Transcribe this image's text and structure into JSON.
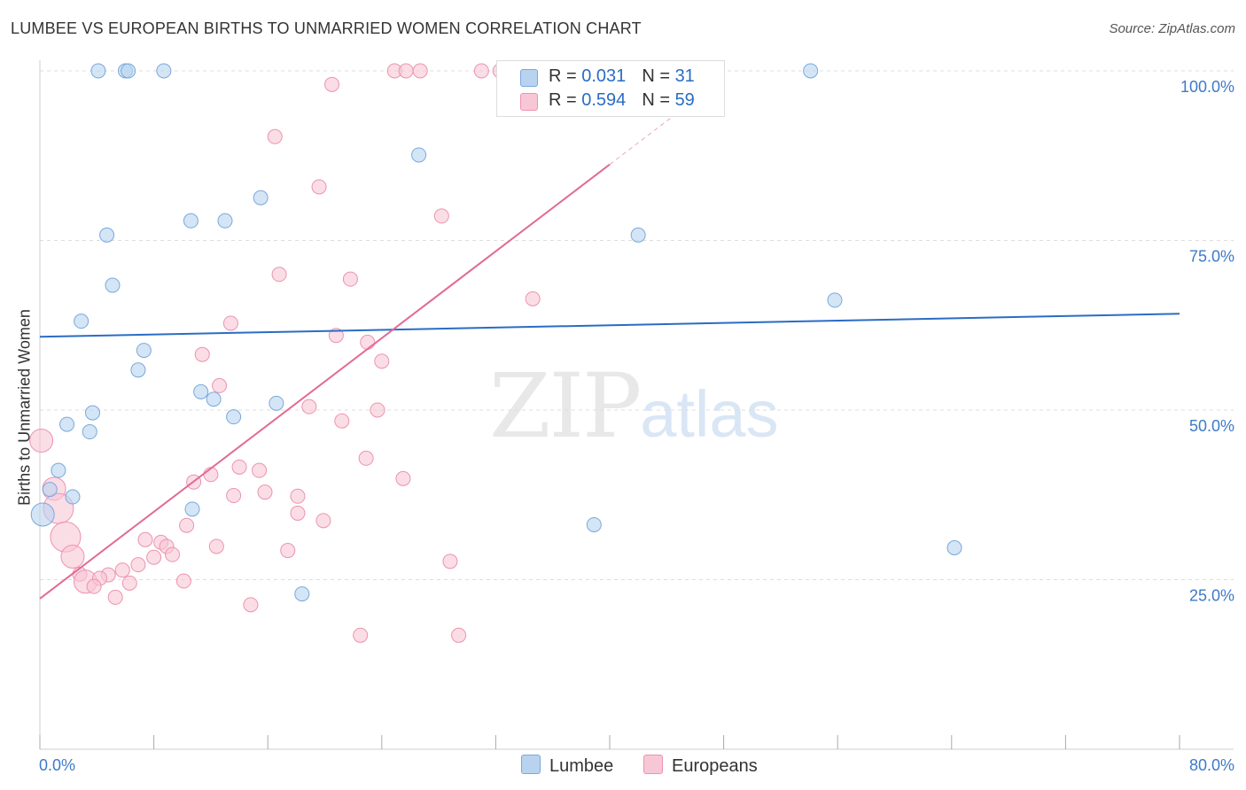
{
  "title": "LUMBEE VS EUROPEAN BIRTHS TO UNMARRIED WOMEN CORRELATION CHART",
  "source": "Source: ZipAtlas.com",
  "watermark": {
    "zip": "ZIP",
    "atlas": "atlas"
  },
  "legend": {
    "lumbee": {
      "r_label": "R = ",
      "r_value": "0.031",
      "n_label": "N = ",
      "n_value": "31"
    },
    "europeans": {
      "r_label": "R = ",
      "r_value": "0.594",
      "n_label": "N = ",
      "n_value": "59"
    }
  },
  "bottom_legend": {
    "lumbee": "Lumbee",
    "europeans": "Europeans"
  },
  "colors": {
    "lumbee_fill": "#b8d3f0",
    "lumbee_stroke": "#7aa8dc",
    "lumbee_line": "#2a6cc4",
    "europeans_fill": "#f8c7d6",
    "europeans_stroke": "#ec93b0",
    "europeans_line": "#e26a94",
    "tick_label": "#3d7ac8",
    "grid": "#dddddd"
  },
  "chart_data": {
    "type": "scatter",
    "title": "LUMBEE VS EUROPEAN BIRTHS TO UNMARRIED WOMEN CORRELATION CHART",
    "xlabel": "",
    "ylabel": "Births to Unmarried Women",
    "xlim": [
      0,
      80
    ],
    "ylim": [
      0,
      100
    ],
    "x_tick_labels": [
      "0.0%",
      "80.0%"
    ],
    "y_ticks": [
      25,
      50,
      75,
      100
    ],
    "y_tick_labels": [
      "25.0%",
      "50.0%",
      "75.0%",
      "100.0%"
    ],
    "grid": true,
    "legend_position": "top-center",
    "series": [
      {
        "name": "Lumbee",
        "r": 0.031,
        "n": 31,
        "trend": {
          "x": [
            0,
            80
          ],
          "y": [
            60.8,
            64.2
          ]
        },
        "points": [
          {
            "x": 4.1,
            "y": 100,
            "s": 1
          },
          {
            "x": 6.0,
            "y": 100,
            "s": 1
          },
          {
            "x": 6.2,
            "y": 100,
            "s": 1
          },
          {
            "x": 8.7,
            "y": 100,
            "s": 1
          },
          {
            "x": 54.1,
            "y": 100,
            "s": 1
          },
          {
            "x": 26.6,
            "y": 87.6,
            "s": 1
          },
          {
            "x": 15.5,
            "y": 81.3,
            "s": 1
          },
          {
            "x": 10.6,
            "y": 77.9,
            "s": 1
          },
          {
            "x": 13.0,
            "y": 77.9,
            "s": 1
          },
          {
            "x": 4.7,
            "y": 75.8,
            "s": 1
          },
          {
            "x": 42.0,
            "y": 75.8,
            "s": 1
          },
          {
            "x": 5.1,
            "y": 68.4,
            "s": 1
          },
          {
            "x": 55.8,
            "y": 66.2,
            "s": 1
          },
          {
            "x": 2.9,
            "y": 63.1,
            "s": 1
          },
          {
            "x": 7.3,
            "y": 58.8,
            "s": 1
          },
          {
            "x": 6.9,
            "y": 55.9,
            "s": 1
          },
          {
            "x": 11.3,
            "y": 52.7,
            "s": 1
          },
          {
            "x": 12.2,
            "y": 51.6,
            "s": 1
          },
          {
            "x": 16.6,
            "y": 51.0,
            "s": 1
          },
          {
            "x": 3.7,
            "y": 49.6,
            "s": 1
          },
          {
            "x": 13.6,
            "y": 49.0,
            "s": 1
          },
          {
            "x": 1.9,
            "y": 47.9,
            "s": 1
          },
          {
            "x": 3.5,
            "y": 46.8,
            "s": 1
          },
          {
            "x": 1.3,
            "y": 41.1,
            "s": 1
          },
          {
            "x": 0.7,
            "y": 38.3,
            "s": 1
          },
          {
            "x": 2.3,
            "y": 37.2,
            "s": 1
          },
          {
            "x": 10.7,
            "y": 35.4,
            "s": 1
          },
          {
            "x": 0.2,
            "y": 34.6,
            "s": 2
          },
          {
            "x": 38.9,
            "y": 33.1,
            "s": 1
          },
          {
            "x": 64.2,
            "y": 29.7,
            "s": 1
          },
          {
            "x": 18.4,
            "y": 22.9,
            "s": 1
          }
        ]
      },
      {
        "name": "Europeans",
        "r": 0.594,
        "n": 59,
        "trend": {
          "x": [
            0,
            40,
            48
          ],
          "y": [
            22.2,
            86.2,
            99.0
          ],
          "dashed_from_index": 1
        },
        "points": [
          {
            "x": 24.9,
            "y": 100,
            "s": 1
          },
          {
            "x": 25.7,
            "y": 100,
            "s": 1
          },
          {
            "x": 26.7,
            "y": 100,
            "s": 1
          },
          {
            "x": 31.0,
            "y": 100,
            "s": 1
          },
          {
            "x": 32.3,
            "y": 100,
            "s": 1
          },
          {
            "x": 20.5,
            "y": 98.0,
            "s": 1
          },
          {
            "x": 16.5,
            "y": 90.3,
            "s": 1
          },
          {
            "x": 19.6,
            "y": 82.9,
            "s": 1
          },
          {
            "x": 28.2,
            "y": 78.6,
            "s": 1
          },
          {
            "x": 16.8,
            "y": 70.0,
            "s": 1
          },
          {
            "x": 21.8,
            "y": 69.3,
            "s": 1
          },
          {
            "x": 34.6,
            "y": 66.4,
            "s": 1
          },
          {
            "x": 13.4,
            "y": 62.8,
            "s": 1
          },
          {
            "x": 20.8,
            "y": 61.0,
            "s": 1
          },
          {
            "x": 23.0,
            "y": 60.0,
            "s": 1
          },
          {
            "x": 11.4,
            "y": 58.2,
            "s": 1
          },
          {
            "x": 24.0,
            "y": 57.2,
            "s": 1
          },
          {
            "x": 12.6,
            "y": 53.6,
            "s": 1
          },
          {
            "x": 18.9,
            "y": 50.5,
            "s": 1
          },
          {
            "x": 23.7,
            "y": 50.0,
            "s": 1
          },
          {
            "x": 21.2,
            "y": 48.4,
            "s": 1
          },
          {
            "x": 0.1,
            "y": 45.5,
            "s": 2
          },
          {
            "x": 22.9,
            "y": 42.9,
            "s": 1
          },
          {
            "x": 14.0,
            "y": 41.6,
            "s": 1
          },
          {
            "x": 15.4,
            "y": 41.1,
            "s": 1
          },
          {
            "x": 12.0,
            "y": 40.5,
            "s": 1
          },
          {
            "x": 25.5,
            "y": 39.9,
            "s": 1
          },
          {
            "x": 10.8,
            "y": 39.4,
            "s": 1
          },
          {
            "x": 1.0,
            "y": 38.4,
            "s": 2
          },
          {
            "x": 15.8,
            "y": 37.9,
            "s": 1
          },
          {
            "x": 13.6,
            "y": 37.4,
            "s": 1
          },
          {
            "x": 18.1,
            "y": 37.3,
            "s": 1
          },
          {
            "x": 1.3,
            "y": 35.5,
            "s": 3
          },
          {
            "x": 18.1,
            "y": 34.8,
            "s": 1
          },
          {
            "x": 19.9,
            "y": 33.7,
            "s": 1
          },
          {
            "x": 10.3,
            "y": 33.0,
            "s": 1
          },
          {
            "x": 1.8,
            "y": 31.3,
            "s": 3
          },
          {
            "x": 7.4,
            "y": 30.9,
            "s": 1
          },
          {
            "x": 8.5,
            "y": 30.5,
            "s": 1
          },
          {
            "x": 8.9,
            "y": 29.9,
            "s": 1
          },
          {
            "x": 12.4,
            "y": 29.9,
            "s": 1
          },
          {
            "x": 17.4,
            "y": 29.3,
            "s": 1
          },
          {
            "x": 9.3,
            "y": 28.7,
            "s": 1
          },
          {
            "x": 2.3,
            "y": 28.4,
            "s": 2
          },
          {
            "x": 8.0,
            "y": 28.3,
            "s": 1
          },
          {
            "x": 28.8,
            "y": 27.7,
            "s": 1
          },
          {
            "x": 6.9,
            "y": 27.2,
            "s": 1
          },
          {
            "x": 5.8,
            "y": 26.4,
            "s": 1
          },
          {
            "x": 2.8,
            "y": 25.8,
            "s": 1
          },
          {
            "x": 4.8,
            "y": 25.7,
            "s": 1
          },
          {
            "x": 3.2,
            "y": 24.7,
            "s": 2
          },
          {
            "x": 4.2,
            "y": 25.2,
            "s": 1
          },
          {
            "x": 10.1,
            "y": 24.8,
            "s": 1
          },
          {
            "x": 6.3,
            "y": 24.5,
            "s": 1
          },
          {
            "x": 3.8,
            "y": 24.0,
            "s": 1
          },
          {
            "x": 5.3,
            "y": 22.4,
            "s": 1
          },
          {
            "x": 14.8,
            "y": 21.3,
            "s": 1
          },
          {
            "x": 22.5,
            "y": 16.8,
            "s": 1
          },
          {
            "x": 29.4,
            "y": 16.8,
            "s": 1
          }
        ]
      }
    ]
  }
}
